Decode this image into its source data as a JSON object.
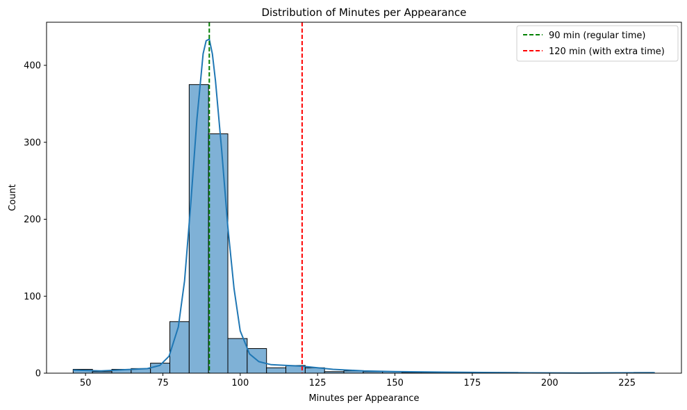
{
  "chart_data": {
    "type": "histogram",
    "title": "Distribution of Minutes per Appearance",
    "xlabel": "Minutes per Appearance",
    "ylabel": "Count",
    "xlim": [
      37.4,
      242.6
    ],
    "ylim": [
      0,
      456
    ],
    "x_ticks": [
      50,
      75,
      100,
      125,
      150,
      175,
      200,
      225
    ],
    "y_ticks": [
      0,
      100,
      200,
      300,
      400
    ],
    "bin_start": 46,
    "bin_width": 6.25,
    "counts": [
      5,
      2,
      5,
      6,
      13,
      67,
      375,
      311,
      45,
      32,
      7,
      10,
      7,
      2,
      3,
      2,
      2,
      1,
      1,
      1,
      0,
      1,
      1,
      0,
      0,
      0,
      0,
      0,
      0,
      1
    ],
    "bar_color": "#7fb1d6",
    "bar_edge_color": "#000000",
    "kde": {
      "name": "KDE",
      "color": "#1f77b4",
      "x": [
        46,
        55,
        60,
        65,
        70,
        74,
        77,
        80,
        82,
        84,
        86,
        88,
        89,
        90,
        91,
        92,
        94,
        96,
        98,
        100,
        103,
        106,
        110,
        115,
        120,
        125,
        130,
        140,
        150,
        160,
        175,
        190,
        210,
        234
      ],
      "y": [
        4,
        3,
        4,
        5,
        6,
        10,
        22,
        60,
        120,
        220,
        330,
        415,
        432,
        434,
        415,
        380,
        290,
        190,
        110,
        55,
        25,
        15,
        11,
        10,
        9,
        7,
        5,
        3,
        2,
        1.5,
        1,
        0.5,
        0.3,
        0.5
      ]
    },
    "reference_lines": [
      {
        "x": 90,
        "label": "90 min (regular time)",
        "color": "#008000",
        "style": "dashed"
      },
      {
        "x": 120,
        "label": "120 min (with extra time)",
        "color": "#ff0000",
        "style": "dashed"
      }
    ],
    "legend_position": "top-right"
  }
}
